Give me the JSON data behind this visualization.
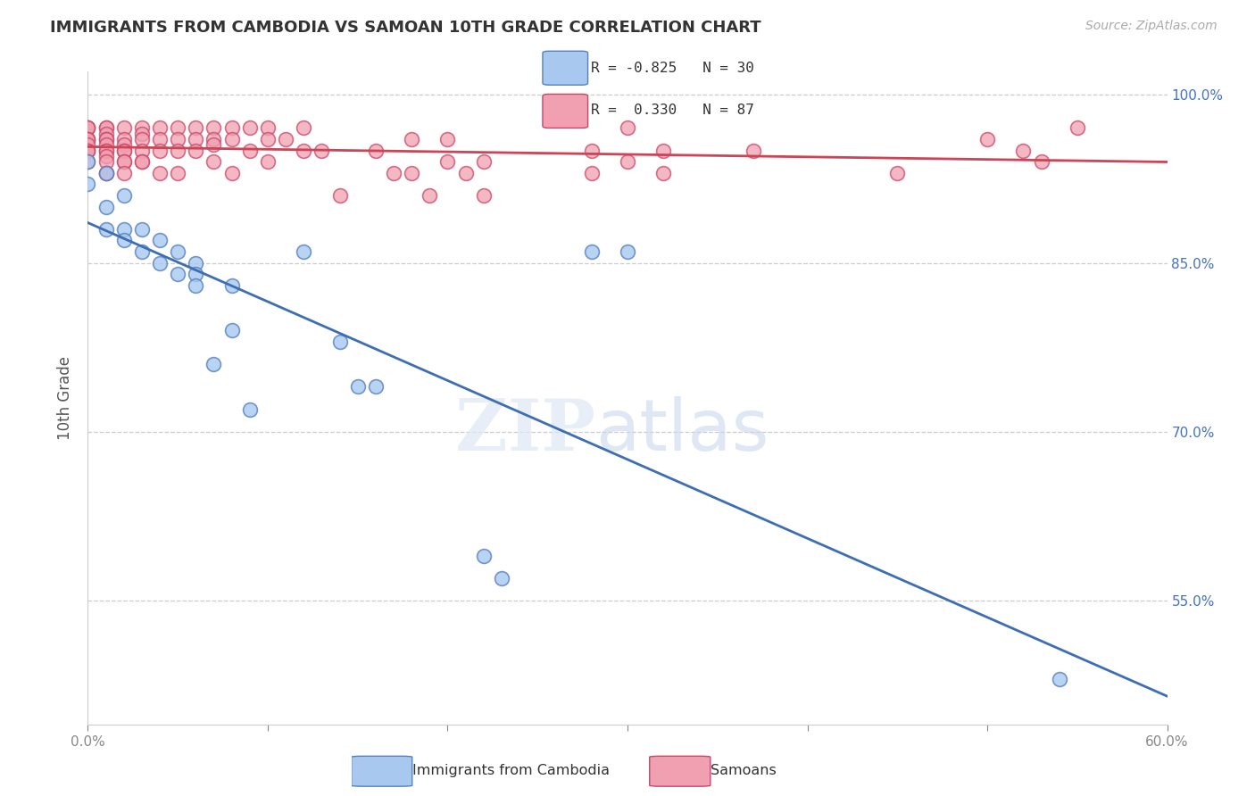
{
  "title": "IMMIGRANTS FROM CAMBODIA VS SAMOAN 10TH GRADE CORRELATION CHART",
  "source": "Source: ZipAtlas.com",
  "ylabel": "10th Grade",
  "xlim": [
    0.0,
    0.6
  ],
  "ylim": [
    0.44,
    1.02
  ],
  "xticks": [
    0.0,
    0.1,
    0.2,
    0.3,
    0.4,
    0.5,
    0.6
  ],
  "xticklabels": [
    "0.0%",
    "",
    "",
    "",
    "",
    "",
    "60.0%"
  ],
  "yticks": [
    0.55,
    0.7,
    0.85,
    1.0
  ],
  "yticklabels": [
    "55.0%",
    "70.0%",
    "85.0%",
    "100.0%"
  ],
  "legend_R1": "-0.825",
  "legend_N1": "30",
  "legend_R2": "0.330",
  "legend_N2": "87",
  "blue_color": "#a8c8f0",
  "pink_color": "#f0a0b0",
  "blue_edge": "#5580c0",
  "pink_edge": "#cc4466",
  "blue_line_color": "#3d6eb5",
  "pink_line_color": "#cc4455",
  "grid_color": "#cccccc",
  "blue_x": [
    0.0,
    0.0,
    0.01,
    0.01,
    0.01,
    0.02,
    0.02,
    0.02,
    0.03,
    0.03,
    0.04,
    0.04,
    0.05,
    0.05,
    0.06,
    0.06,
    0.06,
    0.07,
    0.08,
    0.08,
    0.09,
    0.12,
    0.14,
    0.15,
    0.16,
    0.22,
    0.23,
    0.28,
    0.3,
    0.54
  ],
  "blue_y": [
    0.94,
    0.92,
    0.93,
    0.9,
    0.88,
    0.91,
    0.88,
    0.87,
    0.88,
    0.86,
    0.87,
    0.85,
    0.86,
    0.84,
    0.85,
    0.84,
    0.83,
    0.76,
    0.83,
    0.79,
    0.72,
    0.86,
    0.78,
    0.74,
    0.74,
    0.59,
    0.57,
    0.86,
    0.86,
    0.48
  ],
  "pink_x": [
    0.0,
    0.0,
    0.0,
    0.0,
    0.0,
    0.0,
    0.0,
    0.0,
    0.0,
    0.0,
    0.0,
    0.01,
    0.01,
    0.01,
    0.01,
    0.01,
    0.01,
    0.01,
    0.01,
    0.01,
    0.01,
    0.01,
    0.01,
    0.02,
    0.02,
    0.02,
    0.02,
    0.02,
    0.02,
    0.02,
    0.02,
    0.03,
    0.03,
    0.03,
    0.03,
    0.03,
    0.03,
    0.04,
    0.04,
    0.04,
    0.04,
    0.05,
    0.05,
    0.05,
    0.05,
    0.06,
    0.06,
    0.06,
    0.07,
    0.07,
    0.07,
    0.07,
    0.08,
    0.08,
    0.08,
    0.09,
    0.09,
    0.1,
    0.1,
    0.1,
    0.11,
    0.12,
    0.12,
    0.13,
    0.14,
    0.16,
    0.17,
    0.18,
    0.18,
    0.19,
    0.2,
    0.2,
    0.21,
    0.22,
    0.22,
    0.28,
    0.28,
    0.3,
    0.3,
    0.32,
    0.32,
    0.37,
    0.45,
    0.5,
    0.52,
    0.53,
    0.55
  ],
  "pink_y": [
    0.97,
    0.97,
    0.97,
    0.96,
    0.96,
    0.96,
    0.955,
    0.95,
    0.95,
    0.95,
    0.94,
    0.97,
    0.97,
    0.965,
    0.96,
    0.96,
    0.955,
    0.95,
    0.95,
    0.945,
    0.94,
    0.93,
    0.93,
    0.97,
    0.96,
    0.955,
    0.95,
    0.95,
    0.94,
    0.94,
    0.93,
    0.97,
    0.965,
    0.96,
    0.95,
    0.94,
    0.94,
    0.97,
    0.96,
    0.95,
    0.93,
    0.97,
    0.96,
    0.95,
    0.93,
    0.97,
    0.96,
    0.95,
    0.97,
    0.96,
    0.955,
    0.94,
    0.97,
    0.96,
    0.93,
    0.97,
    0.95,
    0.97,
    0.96,
    0.94,
    0.96,
    0.97,
    0.95,
    0.95,
    0.91,
    0.95,
    0.93,
    0.96,
    0.93,
    0.91,
    0.96,
    0.94,
    0.93,
    0.94,
    0.91,
    0.95,
    0.93,
    0.97,
    0.94,
    0.95,
    0.93,
    0.95,
    0.93,
    0.96,
    0.95,
    0.94,
    0.97
  ]
}
